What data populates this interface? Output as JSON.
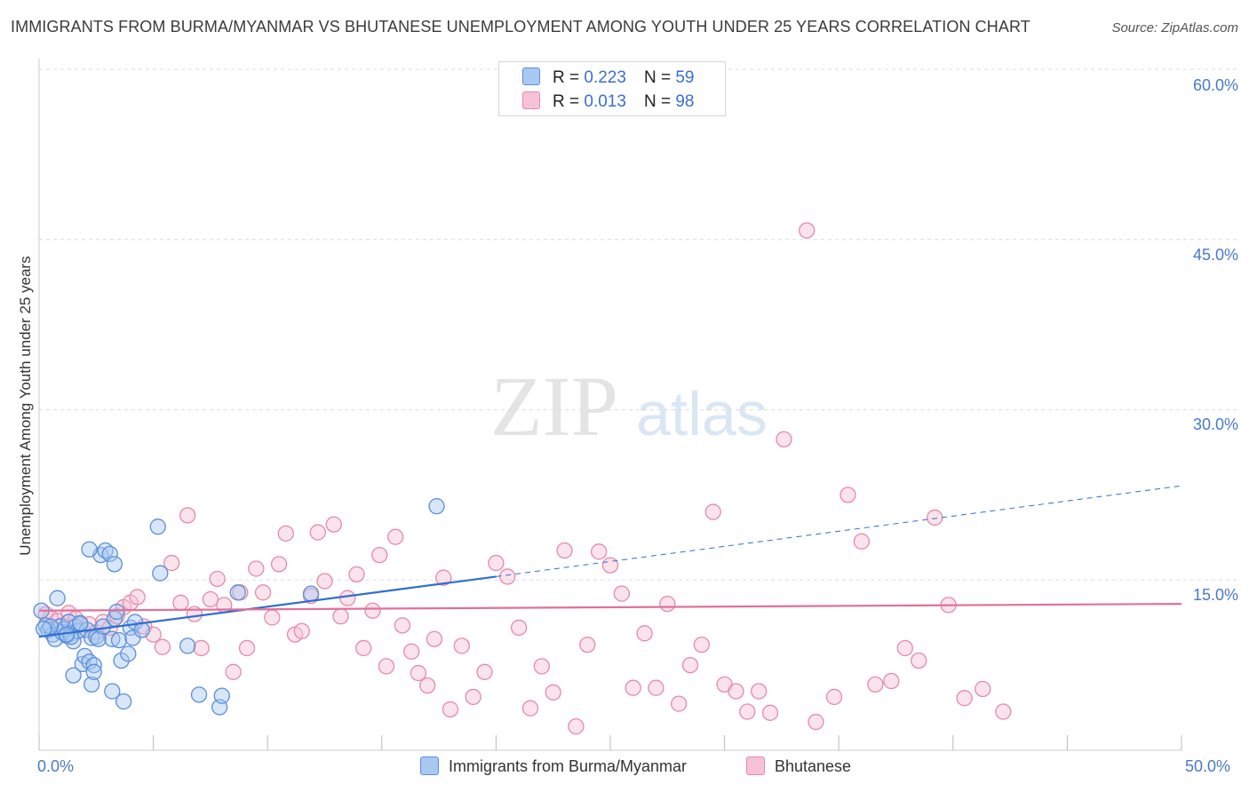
{
  "title": "IMMIGRANTS FROM BURMA/MYANMAR VS BHUTANESE UNEMPLOYMENT AMONG YOUTH UNDER 25 YEARS CORRELATION CHART",
  "source": "Source: ZipAtlas.com",
  "watermark": {
    "zip": "ZIP",
    "atlas": "atlas"
  },
  "colors": {
    "blue_fill": "#a9c8f2",
    "blue_stroke": "#5a8fd8",
    "blue_line": "#2f6fd0",
    "pink_fill": "#f7c2d4",
    "pink_stroke": "#e68aa8",
    "pink_line": "#e0709a",
    "tick_text": "#4a79c8",
    "grid": "#dddddd"
  },
  "legend": {
    "r_label": "R =",
    "n_label": "N =",
    "series": [
      {
        "name": "Immigrants from Burma/Myanmar",
        "r": "0.223",
        "n": "59"
      },
      {
        "name": "Bhutanese",
        "r": "0.013",
        "n": "98"
      }
    ]
  },
  "chart_data": {
    "type": "scatter",
    "title": "IMMIGRANTS FROM BURMA/MYANMAR VS BHUTANESE UNEMPLOYMENT AMONG YOUTH UNDER 25 YEARS CORRELATION CHART",
    "xlabel": "",
    "ylabel": "Unemployment Among Youth under 25 years",
    "xlim": [
      0,
      50
    ],
    "ylim": [
      0,
      60
    ],
    "x_tick_labels": [
      "0.0%",
      "50.0%"
    ],
    "y_ticks": [
      15,
      30,
      45,
      60
    ],
    "y_tick_labels": [
      "15.0%",
      "30.0%",
      "45.0%",
      "60.0%"
    ],
    "series": [
      {
        "name": "Immigrants from Burma/Myanmar",
        "trend": {
          "x": [
            0,
            20
          ],
          "y": [
            10.0,
            15.3
          ],
          "dashed_extension_to": [
            50,
            23.3
          ]
        },
        "points": [
          [
            0.1,
            12.3
          ],
          [
            0.3,
            11.0
          ],
          [
            0.4,
            10.6
          ],
          [
            0.6,
            10.2
          ],
          [
            0.7,
            9.8
          ],
          [
            0.8,
            13.4
          ],
          [
            0.9,
            10.9
          ],
          [
            1.0,
            10.4
          ],
          [
            1.1,
            10.7
          ],
          [
            1.2,
            10.1
          ],
          [
            1.3,
            11.3
          ],
          [
            1.4,
            10.3
          ],
          [
            1.5,
            9.6
          ],
          [
            1.6,
            10.9
          ],
          [
            1.7,
            10.5
          ],
          [
            1.8,
            11.1
          ],
          [
            1.9,
            7.6
          ],
          [
            2.0,
            8.3
          ],
          [
            2.1,
            10.6
          ],
          [
            2.2,
            7.8
          ],
          [
            2.3,
            9.9
          ],
          [
            2.4,
            7.5
          ],
          [
            2.5,
            10.0
          ],
          [
            2.6,
            9.8
          ],
          [
            2.7,
            17.2
          ],
          [
            2.8,
            10.9
          ],
          [
            2.9,
            17.6
          ],
          [
            3.1,
            17.3
          ],
          [
            3.2,
            9.8
          ],
          [
            3.3,
            11.6
          ],
          [
            3.4,
            12.2
          ],
          [
            3.5,
            9.7
          ],
          [
            3.6,
            7.9
          ],
          [
            3.7,
            4.3
          ],
          [
            3.9,
            8.5
          ],
          [
            4.0,
            10.8
          ],
          [
            4.1,
            9.9
          ],
          [
            4.2,
            11.3
          ],
          [
            4.5,
            10.6
          ],
          [
            5.2,
            19.7
          ],
          [
            5.3,
            15.6
          ],
          [
            6.5,
            9.2
          ],
          [
            7.0,
            4.9
          ],
          [
            7.9,
            3.8
          ],
          [
            8.0,
            4.8
          ],
          [
            8.7,
            13.9
          ],
          [
            11.9,
            13.8
          ],
          [
            17.4,
            21.5
          ],
          [
            0.5,
            10.9
          ],
          [
            0.2,
            10.7
          ],
          [
            1.4,
            10.0
          ],
          [
            2.2,
            17.7
          ],
          [
            1.5,
            6.6
          ],
          [
            2.3,
            5.8
          ],
          [
            3.3,
            16.4
          ],
          [
            3.2,
            5.2
          ],
          [
            2.4,
            6.9
          ],
          [
            1.8,
            11.2
          ],
          [
            1.2,
            10.2
          ]
        ]
      },
      {
        "name": "Bhutanese",
        "trend": {
          "x": [
            0,
            50
          ],
          "y": [
            12.3,
            12.9
          ]
        },
        "points": [
          [
            0.3,
            12.0
          ],
          [
            0.5,
            11.7
          ],
          [
            0.8,
            11.4
          ],
          [
            1.0,
            11.0
          ],
          [
            1.3,
            12.1
          ],
          [
            1.6,
            11.6
          ],
          [
            1.9,
            10.6
          ],
          [
            2.2,
            11.1
          ],
          [
            2.5,
            10.4
          ],
          [
            2.8,
            11.3
          ],
          [
            3.1,
            10.8
          ],
          [
            3.4,
            11.8
          ],
          [
            3.7,
            12.6
          ],
          [
            4.0,
            13.0
          ],
          [
            4.3,
            13.5
          ],
          [
            4.6,
            10.9
          ],
          [
            5.0,
            10.2
          ],
          [
            5.4,
            9.1
          ],
          [
            5.8,
            16.5
          ],
          [
            6.2,
            13.0
          ],
          [
            6.5,
            20.7
          ],
          [
            6.8,
            12.0
          ],
          [
            7.1,
            9.0
          ],
          [
            7.5,
            13.3
          ],
          [
            7.8,
            15.1
          ],
          [
            8.1,
            12.8
          ],
          [
            8.5,
            6.9
          ],
          [
            8.8,
            13.9
          ],
          [
            9.1,
            9.0
          ],
          [
            9.5,
            16.0
          ],
          [
            9.8,
            13.9
          ],
          [
            10.2,
            11.7
          ],
          [
            10.5,
            16.4
          ],
          [
            10.8,
            19.1
          ],
          [
            11.2,
            10.2
          ],
          [
            11.5,
            10.5
          ],
          [
            11.9,
            13.6
          ],
          [
            12.2,
            19.2
          ],
          [
            12.5,
            14.9
          ],
          [
            12.9,
            19.9
          ],
          [
            13.2,
            11.8
          ],
          [
            13.5,
            13.4
          ],
          [
            13.9,
            15.5
          ],
          [
            14.2,
            9.0
          ],
          [
            14.6,
            12.3
          ],
          [
            14.9,
            17.2
          ],
          [
            15.2,
            7.4
          ],
          [
            15.6,
            18.8
          ],
          [
            15.9,
            11.0
          ],
          [
            16.3,
            8.7
          ],
          [
            16.6,
            6.8
          ],
          [
            17.0,
            5.7
          ],
          [
            17.3,
            9.8
          ],
          [
            17.7,
            15.2
          ],
          [
            18.0,
            3.6
          ],
          [
            18.5,
            9.2
          ],
          [
            19.0,
            4.7
          ],
          [
            19.5,
            6.9
          ],
          [
            20.0,
            16.5
          ],
          [
            20.5,
            15.3
          ],
          [
            21.0,
            10.8
          ],
          [
            21.5,
            3.7
          ],
          [
            22.0,
            7.4
          ],
          [
            22.5,
            5.1
          ],
          [
            23.0,
            17.6
          ],
          [
            23.5,
            2.1
          ],
          [
            24.0,
            9.3
          ],
          [
            24.5,
            17.5
          ],
          [
            25.0,
            16.3
          ],
          [
            25.5,
            13.8
          ],
          [
            26.0,
            5.5
          ],
          [
            26.5,
            10.3
          ],
          [
            27.0,
            5.5
          ],
          [
            27.5,
            12.9
          ],
          [
            28.0,
            4.1
          ],
          [
            28.5,
            7.5
          ],
          [
            29.0,
            9.3
          ],
          [
            29.5,
            21.0
          ],
          [
            30.0,
            5.8
          ],
          [
            30.5,
            5.2
          ],
          [
            31.0,
            3.4
          ],
          [
            31.5,
            5.2
          ],
          [
            32.0,
            3.3
          ],
          [
            32.6,
            27.4
          ],
          [
            33.6,
            45.8
          ],
          [
            34.0,
            2.5
          ],
          [
            34.8,
            4.7
          ],
          [
            35.4,
            22.5
          ],
          [
            36.0,
            18.4
          ],
          [
            36.6,
            5.8
          ],
          [
            37.3,
            6.1
          ],
          [
            37.9,
            9.0
          ],
          [
            38.5,
            7.9
          ],
          [
            39.2,
            20.5
          ],
          [
            39.8,
            12.8
          ],
          [
            40.5,
            4.6
          ],
          [
            41.3,
            5.4
          ],
          [
            42.2,
            3.4
          ]
        ]
      }
    ]
  }
}
